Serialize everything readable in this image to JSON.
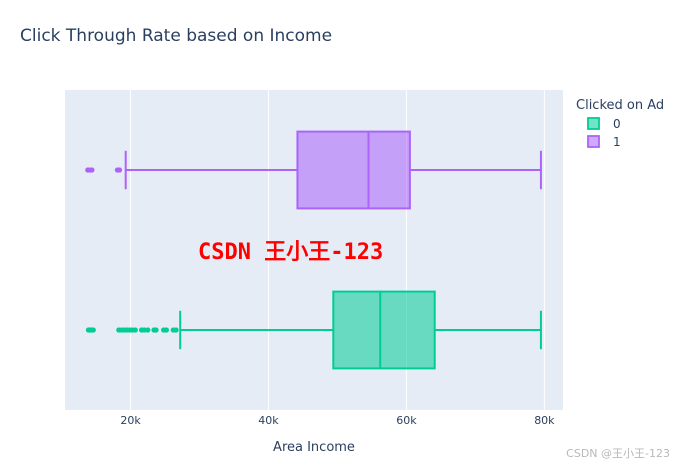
{
  "chart_data": {
    "type": "box",
    "orientation": "horizontal",
    "title": "Click Through Rate based on Income",
    "xlabel": "Area Income",
    "ylabel": "",
    "xlim": [
      10500,
      82700
    ],
    "xticks": [
      {
        "value": 20000,
        "label": "20k"
      },
      {
        "value": 40000,
        "label": "40k"
      },
      {
        "value": 60000,
        "label": "60k"
      },
      {
        "value": 80000,
        "label": "80k"
      }
    ],
    "grid": true,
    "legend": {
      "title": "Clicked on Ad",
      "placement": "top-right",
      "entries": [
        {
          "name": "0",
          "color": "#00cc96"
        },
        {
          "name": "1",
          "color": "#ab63fa"
        }
      ]
    },
    "series": [
      {
        "name": "0",
        "color": "#00cc96",
        "lower_fence": 27200,
        "q1": 49400,
        "median": 56200,
        "q3": 64100,
        "upper_fence": 79500,
        "outliers": [
          13900,
          14100,
          14300,
          14600,
          18300,
          18700,
          19100,
          19500,
          19900,
          20300,
          20700,
          21600,
          22000,
          22500,
          23400,
          23700,
          24800,
          25200,
          26200,
          26600
        ]
      },
      {
        "name": "1",
        "color": "#ab63fa",
        "lower_fence": 19300,
        "q1": 44200,
        "median": 54500,
        "q3": 60500,
        "upper_fence": 79500,
        "outliers": [
          13800,
          14100,
          14400,
          18100,
          18400
        ]
      }
    ]
  },
  "overlay_text": "CSDN 王小王-123",
  "watermark": "CSDN @王小王-123"
}
